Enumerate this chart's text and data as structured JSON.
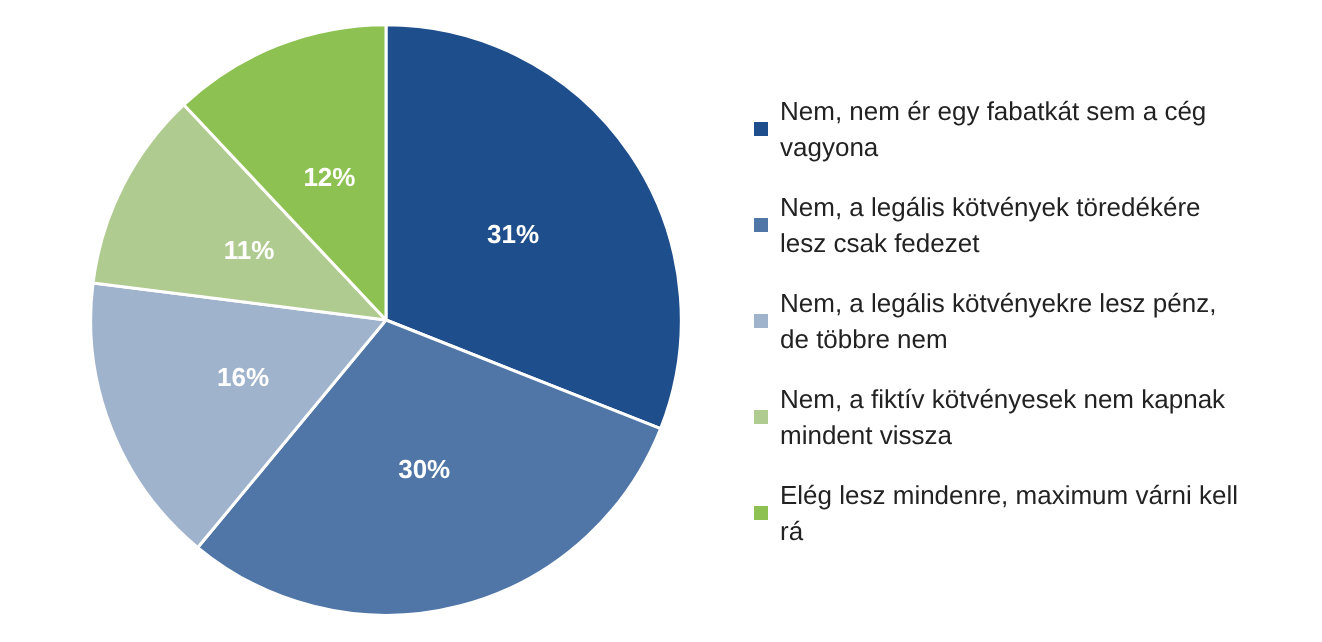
{
  "chart_data": {
    "type": "pie",
    "categories": [
      "Nem, nem ér egy fabatkát sem a cég vagyona",
      "Nem, a legális kötvények töredékére lesz csak fedezet",
      "Nem, a legális kötvényekre lesz pénz, de többre nem",
      "Nem, a fiktív kötvényesek nem kapnak mindent vissza",
      "Elég lesz mindenre, maximum várni kell rá"
    ],
    "values": [
      31,
      30,
      16,
      11,
      12
    ],
    "value_labels": [
      "31%",
      "30%",
      "16%",
      "11%",
      "12%"
    ],
    "colors": [
      "#1f4e8c",
      "#4f76a6",
      "#a0b3cc",
      "#afcb8f",
      "#8dc152"
    ],
    "legend": "right"
  }
}
